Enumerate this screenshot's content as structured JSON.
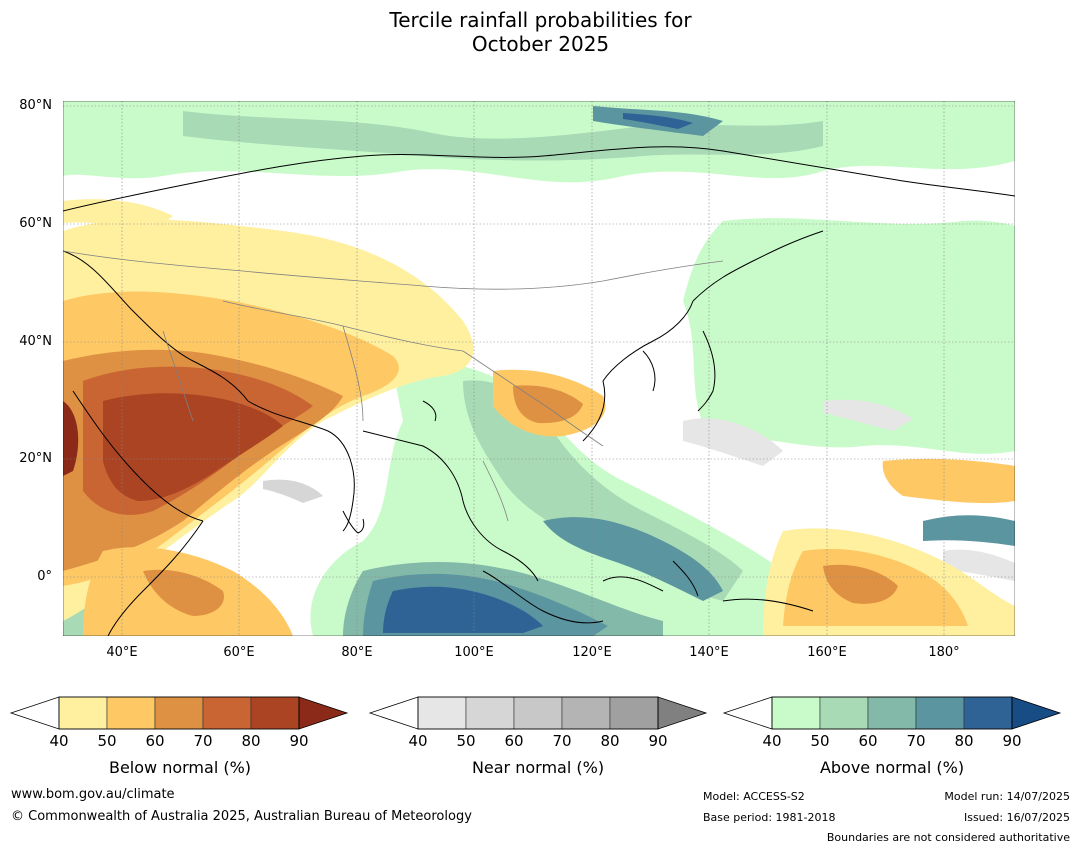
{
  "title_line1": "Tercile rainfall probabilities for",
  "title_line2": "October 2025",
  "map": {
    "latitude_labels": [
      "80°N",
      "60°N",
      "40°N",
      "20°N",
      "0°"
    ],
    "longitude_labels": [
      "40°E",
      "60°E",
      "80°E",
      "100°E",
      "120°E",
      "140°E",
      "160°E",
      "180°"
    ]
  },
  "colorbars": [
    {
      "label": "Below normal (%)",
      "ticks": [
        "40",
        "50",
        "60",
        "70",
        "80",
        "90"
      ],
      "colors": [
        "#fff0a0",
        "#fec965",
        "#df9143",
        "#c96433",
        "#ab4422",
        "#8c2a1a"
      ]
    },
    {
      "label": "Near normal (%)",
      "ticks": [
        "40",
        "50",
        "60",
        "70",
        "80",
        "90"
      ],
      "colors": [
        "#e6e6e6",
        "#d6d6d6",
        "#c8c8c8",
        "#b4b4b4",
        "#a0a0a0",
        "#808080"
      ]
    },
    {
      "label": "Above normal (%)",
      "ticks": [
        "40",
        "50",
        "60",
        "70",
        "80",
        "90"
      ],
      "colors": [
        "#c9fbca",
        "#a8dab6",
        "#83b9a8",
        "#5b95a0",
        "#2f6295",
        "#174c85"
      ]
    }
  ],
  "footer": {
    "website": "www.bom.gov.au/climate",
    "copyright": "© Commonwealth of Australia 2025, Australian Bureau of Meteorology",
    "model": "Model: ACCESS-S2",
    "base_period": "Base period: 1981-2018",
    "model_run": "Model run: 14/07/2025",
    "issued": "Issued: 16/07/2025",
    "disclaimer": "Boundaries are not considered authoritative"
  }
}
